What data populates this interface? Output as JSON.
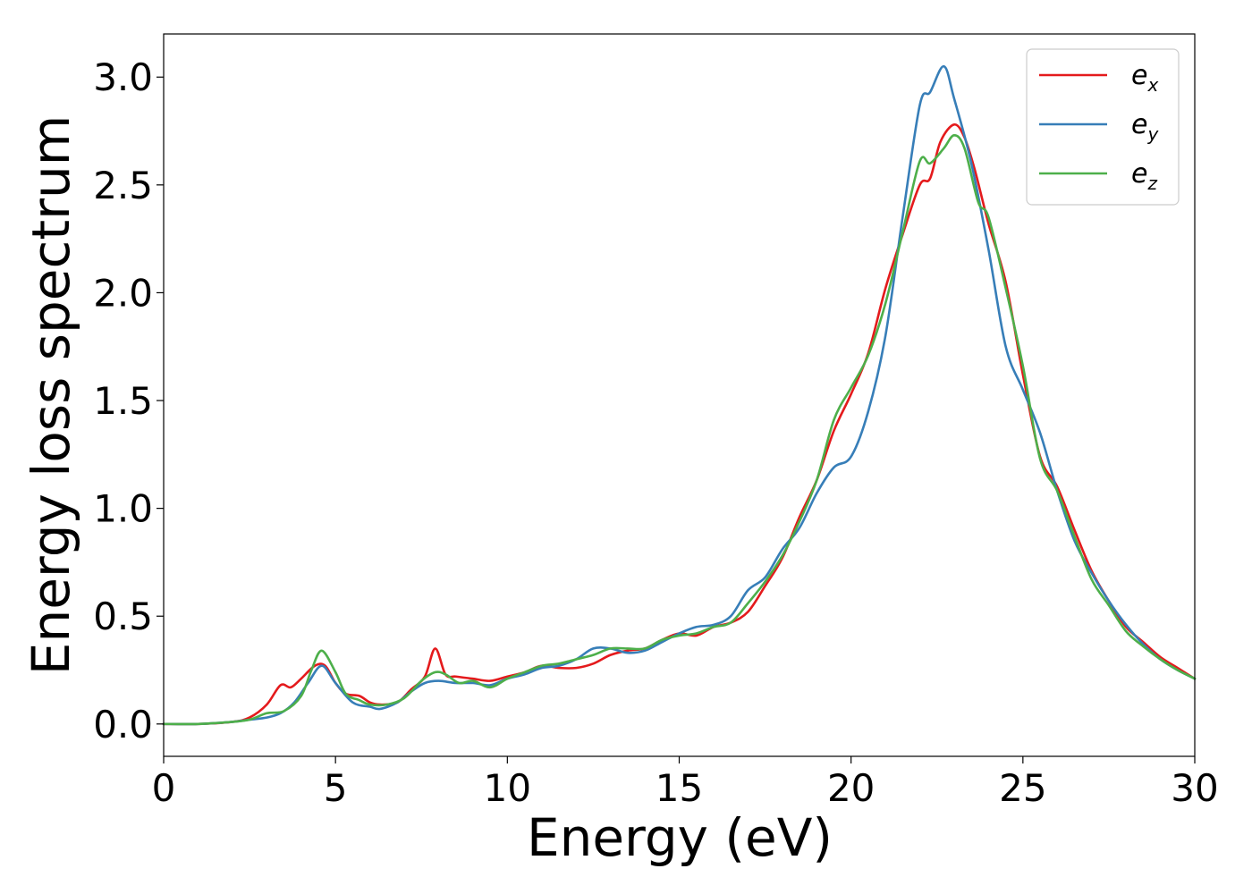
{
  "chart_data": {
    "type": "line",
    "xlabel": "Energy (eV)",
    "ylabel": "Energy loss spectrum",
    "xlim": [
      0,
      30
    ],
    "ylim": [
      -0.15,
      3.2
    ],
    "xticks": [
      0,
      5,
      10,
      15,
      20,
      25,
      30
    ],
    "yticks": [
      0.0,
      0.5,
      1.0,
      1.5,
      2.0,
      2.5,
      3.0
    ],
    "xtick_labels": [
      "0",
      "5",
      "10",
      "15",
      "20",
      "25",
      "30"
    ],
    "ytick_labels": [
      "0.0",
      "0.5",
      "1.0",
      "1.5",
      "2.0",
      "2.5",
      "3.0"
    ],
    "grid": false,
    "legend_position": "top-right",
    "series": [
      {
        "name": "e_x",
        "label_base": "e",
        "label_sub": "x",
        "color": "#e41a1c",
        "points": [
          [
            0,
            0.0
          ],
          [
            1,
            0.0
          ],
          [
            2,
            0.01
          ],
          [
            2.5,
            0.03
          ],
          [
            3,
            0.09
          ],
          [
            3.4,
            0.18
          ],
          [
            3.7,
            0.17
          ],
          [
            4,
            0.21
          ],
          [
            4.4,
            0.27
          ],
          [
            4.7,
            0.27
          ],
          [
            5,
            0.19
          ],
          [
            5.3,
            0.14
          ],
          [
            5.7,
            0.13
          ],
          [
            6,
            0.1
          ],
          [
            6.3,
            0.09
          ],
          [
            6.8,
            0.1
          ],
          [
            7.2,
            0.16
          ],
          [
            7.6,
            0.22
          ],
          [
            7.9,
            0.35
          ],
          [
            8.2,
            0.23
          ],
          [
            8.5,
            0.22
          ],
          [
            9,
            0.21
          ],
          [
            9.5,
            0.2
          ],
          [
            10,
            0.22
          ],
          [
            10.5,
            0.24
          ],
          [
            11,
            0.27
          ],
          [
            11.5,
            0.26
          ],
          [
            12,
            0.26
          ],
          [
            12.5,
            0.28
          ],
          [
            13,
            0.32
          ],
          [
            13.5,
            0.34
          ],
          [
            14,
            0.35
          ],
          [
            14.5,
            0.39
          ],
          [
            15,
            0.42
          ],
          [
            15.5,
            0.41
          ],
          [
            16,
            0.45
          ],
          [
            16.5,
            0.47
          ],
          [
            17,
            0.52
          ],
          [
            17.5,
            0.64
          ],
          [
            18,
            0.77
          ],
          [
            18.5,
            0.96
          ],
          [
            19,
            1.13
          ],
          [
            19.5,
            1.36
          ],
          [
            20,
            1.53
          ],
          [
            20.5,
            1.72
          ],
          [
            21,
            2.02
          ],
          [
            21.5,
            2.27
          ],
          [
            22,
            2.5
          ],
          [
            22.3,
            2.53
          ],
          [
            22.6,
            2.7
          ],
          [
            23,
            2.78
          ],
          [
            23.3,
            2.72
          ],
          [
            23.6,
            2.57
          ],
          [
            24,
            2.32
          ],
          [
            24.5,
            2.05
          ],
          [
            25,
            1.62
          ],
          [
            25.5,
            1.24
          ],
          [
            26,
            1.1
          ],
          [
            26.5,
            0.9
          ],
          [
            27,
            0.71
          ],
          [
            27.5,
            0.57
          ],
          [
            28,
            0.45
          ],
          [
            28.5,
            0.38
          ],
          [
            29,
            0.31
          ],
          [
            29.5,
            0.26
          ],
          [
            30,
            0.21
          ]
        ]
      },
      {
        "name": "e_y",
        "label_base": "e",
        "label_sub": "y",
        "color": "#377eb8",
        "points": [
          [
            0,
            0.0
          ],
          [
            1,
            0.0
          ],
          [
            2,
            0.01
          ],
          [
            2.5,
            0.02
          ],
          [
            3,
            0.03
          ],
          [
            3.4,
            0.05
          ],
          [
            3.8,
            0.1
          ],
          [
            4.2,
            0.19
          ],
          [
            4.6,
            0.27
          ],
          [
            5,
            0.19
          ],
          [
            5.5,
            0.1
          ],
          [
            6,
            0.08
          ],
          [
            6.3,
            0.07
          ],
          [
            6.8,
            0.1
          ],
          [
            7.2,
            0.15
          ],
          [
            7.6,
            0.19
          ],
          [
            8,
            0.2
          ],
          [
            8.5,
            0.19
          ],
          [
            9,
            0.19
          ],
          [
            9.5,
            0.18
          ],
          [
            10,
            0.21
          ],
          [
            10.5,
            0.23
          ],
          [
            11,
            0.26
          ],
          [
            11.5,
            0.27
          ],
          [
            12,
            0.3
          ],
          [
            12.5,
            0.35
          ],
          [
            13,
            0.35
          ],
          [
            13.5,
            0.33
          ],
          [
            14,
            0.34
          ],
          [
            14.5,
            0.38
          ],
          [
            15,
            0.42
          ],
          [
            15.5,
            0.45
          ],
          [
            16,
            0.46
          ],
          [
            16.5,
            0.5
          ],
          [
            17,
            0.62
          ],
          [
            17.5,
            0.68
          ],
          [
            18,
            0.81
          ],
          [
            18.5,
            0.91
          ],
          [
            19,
            1.07
          ],
          [
            19.5,
            1.19
          ],
          [
            20,
            1.24
          ],
          [
            20.5,
            1.45
          ],
          [
            21,
            1.8
          ],
          [
            21.5,
            2.35
          ],
          [
            22,
            2.87
          ],
          [
            22.3,
            2.93
          ],
          [
            22.7,
            3.05
          ],
          [
            23,
            2.9
          ],
          [
            23.5,
            2.6
          ],
          [
            24,
            2.2
          ],
          [
            24.5,
            1.75
          ],
          [
            25,
            1.55
          ],
          [
            25.5,
            1.35
          ],
          [
            26,
            1.08
          ],
          [
            26.5,
            0.85
          ],
          [
            27,
            0.7
          ],
          [
            27.5,
            0.57
          ],
          [
            28,
            0.46
          ],
          [
            28.5,
            0.37
          ],
          [
            29,
            0.3
          ],
          [
            29.5,
            0.25
          ],
          [
            30,
            0.21
          ]
        ]
      },
      {
        "name": "e_z",
        "label_base": "e",
        "label_sub": "z",
        "color": "#4daf4a",
        "points": [
          [
            0,
            0.0
          ],
          [
            1,
            0.0
          ],
          [
            2,
            0.01
          ],
          [
            2.5,
            0.02
          ],
          [
            3,
            0.05
          ],
          [
            3.5,
            0.06
          ],
          [
            4,
            0.13
          ],
          [
            4.3,
            0.25
          ],
          [
            4.6,
            0.34
          ],
          [
            5,
            0.24
          ],
          [
            5.3,
            0.14
          ],
          [
            5.7,
            0.11
          ],
          [
            6,
            0.09
          ],
          [
            6.5,
            0.09
          ],
          [
            7,
            0.12
          ],
          [
            7.5,
            0.2
          ],
          [
            7.9,
            0.24
          ],
          [
            8.2,
            0.23
          ],
          [
            8.6,
            0.19
          ],
          [
            9,
            0.2
          ],
          [
            9.5,
            0.17
          ],
          [
            10,
            0.21
          ],
          [
            10.5,
            0.24
          ],
          [
            11,
            0.27
          ],
          [
            11.5,
            0.28
          ],
          [
            12,
            0.3
          ],
          [
            12.5,
            0.32
          ],
          [
            13,
            0.35
          ],
          [
            13.5,
            0.35
          ],
          [
            14,
            0.35
          ],
          [
            14.5,
            0.39
          ],
          [
            15,
            0.41
          ],
          [
            15.5,
            0.42
          ],
          [
            16,
            0.45
          ],
          [
            16.5,
            0.47
          ],
          [
            17,
            0.56
          ],
          [
            17.5,
            0.66
          ],
          [
            18,
            0.78
          ],
          [
            18.5,
            0.94
          ],
          [
            19,
            1.13
          ],
          [
            19.5,
            1.41
          ],
          [
            20,
            1.56
          ],
          [
            20.5,
            1.71
          ],
          [
            21,
            1.95
          ],
          [
            21.5,
            2.28
          ],
          [
            22,
            2.61
          ],
          [
            22.3,
            2.6
          ],
          [
            22.7,
            2.67
          ],
          [
            23,
            2.73
          ],
          [
            23.3,
            2.67
          ],
          [
            23.7,
            2.42
          ],
          [
            24,
            2.35
          ],
          [
            24.5,
            2.02
          ],
          [
            25,
            1.66
          ],
          [
            25.5,
            1.23
          ],
          [
            26,
            1.08
          ],
          [
            26.5,
            0.87
          ],
          [
            27,
            0.67
          ],
          [
            27.5,
            0.55
          ],
          [
            28,
            0.43
          ],
          [
            28.5,
            0.36
          ],
          [
            29,
            0.3
          ],
          [
            29.5,
            0.25
          ],
          [
            30,
            0.21
          ]
        ]
      }
    ]
  }
}
